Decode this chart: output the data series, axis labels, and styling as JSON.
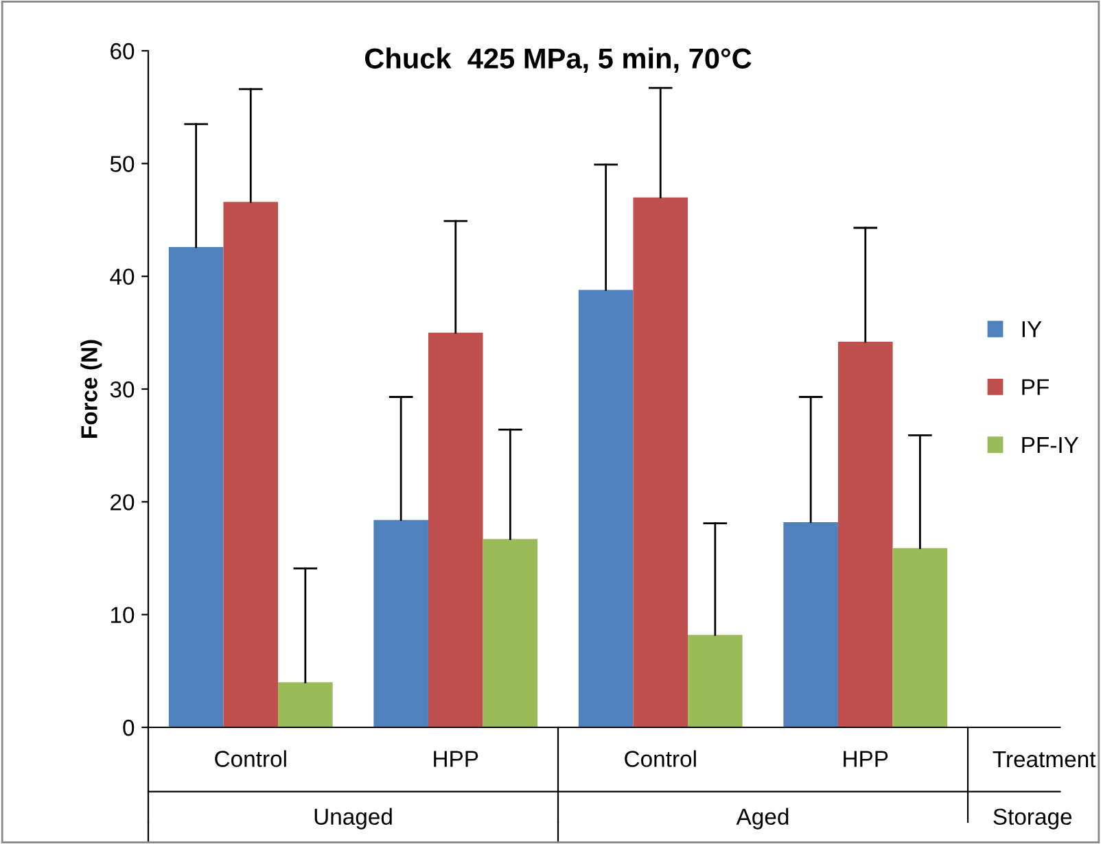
{
  "chart_data": {
    "type": "bar",
    "title": "Chuck  425 MPa, 5 min, 70°C",
    "ylabel": "Force (N)",
    "categories": [
      "Control",
      "HPP",
      "Control",
      "HPP"
    ],
    "series": [
      {
        "name": "IY",
        "color": "#4f81bd",
        "values": [
          42.6,
          18.4,
          38.8,
          18.2
        ],
        "errors": [
          [
            42.6,
            53.5
          ],
          [
            18.4,
            29.3
          ],
          [
            38.8,
            49.9
          ],
          [
            18.2,
            29.3
          ]
        ]
      },
      {
        "name": "PF",
        "color": "#c0504d",
        "values": [
          46.6,
          35.0,
          47.0,
          34.2
        ],
        "errors": [
          [
            46.6,
            56.6
          ],
          [
            35.0,
            44.9
          ],
          [
            47.0,
            56.7
          ],
          [
            34.2,
            44.3
          ]
        ]
      },
      {
        "name": "PF-IY",
        "color": "#9bbb59",
        "values": [
          4.0,
          16.7,
          8.2,
          15.9
        ],
        "errors": [
          [
            4.0,
            14.1
          ],
          [
            16.7,
            26.4
          ],
          [
            8.2,
            18.1
          ],
          [
            15.9,
            25.9
          ]
        ]
      }
    ],
    "annotations": [
      "Unaged",
      "Aged",
      "Treatment",
      "Storage"
    ],
    "ylim": [
      0,
      60
    ],
    "yticks": [
      0,
      10,
      20,
      30,
      40,
      50,
      60
    ],
    "grid": false,
    "legend": "right"
  }
}
